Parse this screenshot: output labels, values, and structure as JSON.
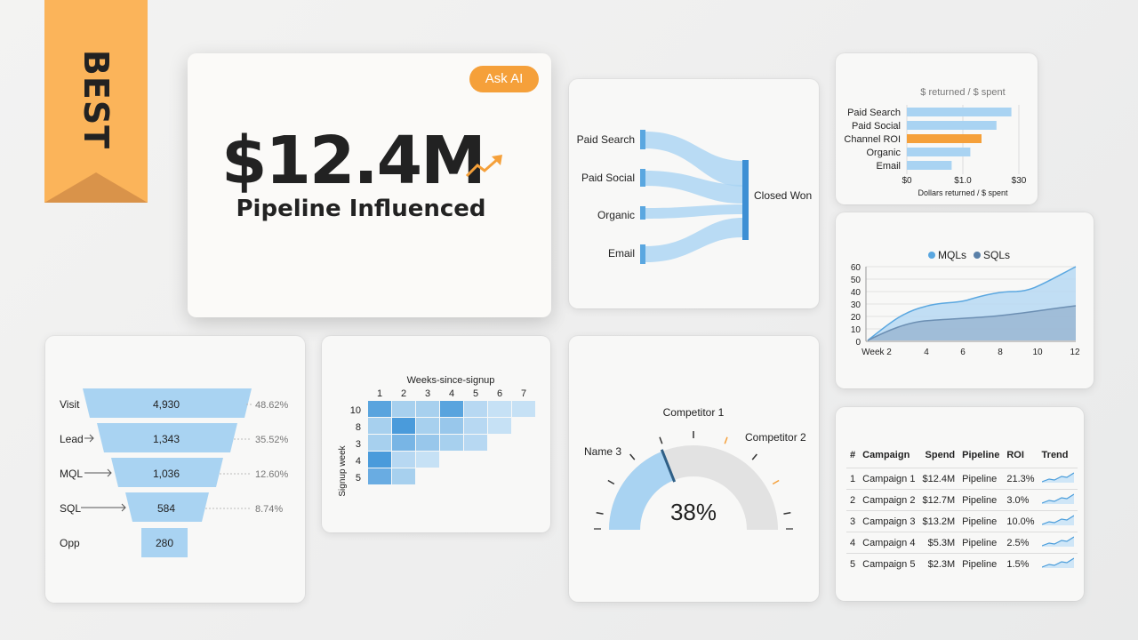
{
  "badge": {
    "label": "BEST"
  },
  "hero": {
    "value": "$12.4M",
    "label": "Pipeline Influenced",
    "ask_ai": "Ask AI"
  },
  "sankey": {
    "sources": [
      "Paid Search",
      "Paid Social",
      "Organic",
      "Email"
    ],
    "target": "Closed Won"
  },
  "roi_chart": {
    "title": "$ returned / $ spent",
    "categories": [
      "Paid Search",
      "Paid Social",
      "Channel ROI",
      "Organic",
      "Email"
    ],
    "values": [
      28,
      24,
      20,
      17,
      12
    ],
    "highlight": "Channel ROI",
    "tick_labels": [
      "$0",
      "$1.0",
      "$30"
    ],
    "xlabel": "Dollars returned / $ spent",
    "colors": {
      "bar": "#a9d3f2",
      "highlight": "#f5a03a"
    }
  },
  "area_chart": {
    "legend": [
      "MQLs",
      "SQLs"
    ],
    "y_ticks": [
      "60",
      "50",
      "40",
      "30",
      "20",
      "10",
      "0"
    ],
    "x_ticks": [
      "Week 2",
      "4",
      "6",
      "8",
      "10",
      "12"
    ]
  },
  "funnel": {
    "stages": [
      {
        "label": "Visit",
        "value": "4,930",
        "pct": "48.62%"
      },
      {
        "label": "Lead",
        "value": "1,343",
        "pct": "35.52%"
      },
      {
        "label": "MQL",
        "value": "1,036",
        "pct": "12.60%"
      },
      {
        "label": "SQL",
        "value": "584",
        "pct": "8.74%"
      },
      {
        "label": "Opp",
        "value": "280",
        "pct": ""
      }
    ]
  },
  "heatmap": {
    "title": "Weeks-since-signup",
    "ylabel": "Signup week",
    "cols": [
      "1",
      "2",
      "3",
      "4",
      "5",
      "6",
      "7"
    ],
    "rows": [
      "10",
      "8",
      "3",
      "4",
      "5"
    ],
    "intensity": [
      [
        0.8,
        0.3,
        0.3,
        0.8,
        0.2,
        0.1,
        0.1
      ],
      [
        0.3,
        0.9,
        0.3,
        0.4,
        0.2,
        0.1
      ],
      [
        0.3,
        0.6,
        0.4,
        0.3,
        0.2
      ],
      [
        0.9,
        0.2,
        0.1
      ],
      [
        0.7,
        0.3
      ]
    ]
  },
  "gauge": {
    "value": "38%",
    "fraction": 0.38,
    "labels": [
      "Name 3",
      "Competitor 1",
      "Competitor 2"
    ]
  },
  "campaign_table": {
    "headers": [
      "#",
      "Campaign",
      "Spend",
      "Pipeline",
      "ROI",
      "Trend"
    ],
    "rows": [
      [
        "1",
        "Campaign 1",
        "$12.4M",
        "Pipeline",
        "21.3%"
      ],
      [
        "2",
        "Campaign 2",
        "$12.7M",
        "Pipeline",
        "3.0%"
      ],
      [
        "3",
        "Campaign 3",
        "$13.2M",
        "Pipeline",
        "10.0%"
      ],
      [
        "4",
        "Campaign 4",
        "$5.3M",
        "Pipeline",
        "2.5%"
      ],
      [
        "5",
        "Campaign 5",
        "$2.3M",
        "Pipeline",
        "1.5%"
      ]
    ]
  }
}
